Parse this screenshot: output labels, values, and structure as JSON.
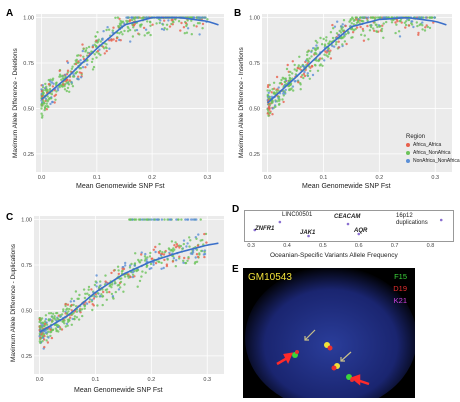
{
  "panels": {
    "A": {
      "letter": "A",
      "xlabel": "Mean Genomewide SNP Fst",
      "ylabel": "Maximum Allele Difference - Deletions",
      "xticks": [
        "0.0",
        "0.1",
        "0.2",
        "0.3"
      ],
      "yticks": [
        "1.00",
        "0.75",
        "0.50",
        "0.25"
      ]
    },
    "B": {
      "letter": "B",
      "xlabel": "Mean Genomewide SNP Fst",
      "ylabel": "Maximum Allele Difference - Insertions",
      "xticks": [
        "0.0",
        "0.1",
        "0.2",
        "0.3"
      ],
      "yticks": [
        "1.00",
        "0.75",
        "0.50",
        "0.25"
      ]
    },
    "C": {
      "letter": "C",
      "xlabel": "Mean Genomewide SNP Fst",
      "ylabel": "Maximum Allele Difference - Duplications",
      "xticks": [
        "0.0",
        "0.1",
        "0.2",
        "0.3"
      ],
      "yticks": [
        "1.00",
        "0.75",
        "0.50",
        "0.25"
      ]
    },
    "D": {
      "letter": "D",
      "xlabel": "Oceanian-Specific Variants Allele Frequency",
      "xticks": [
        "0.3",
        "0.4",
        "0.5",
        "0.6",
        "0.7",
        "0.8"
      ],
      "genes": [
        "LINC00501",
        "CEACAM",
        "16p12",
        "duplications",
        "ZNFR1",
        "JAK1",
        "AQR"
      ]
    },
    "E": {
      "letter": "E",
      "sample": "GM10543",
      "probes": [
        "F15",
        "D19",
        "K21"
      ]
    }
  },
  "legend": {
    "title": "Region",
    "items": [
      "Africa_Africa",
      "Africa_NonAfrica",
      "NonAfrica_NonAfrica"
    ]
  },
  "colors": {
    "Africa_Africa": "#e8604c",
    "Africa_NonAfrica": "#6cc35a",
    "NonAfrica_NonAfrica": "#5b8fd6",
    "fit": "#3a6fc9",
    "F15": "#3bd63b",
    "D19": "#e83030",
    "K21": "#d040e0",
    "sample": "#f2e23a"
  },
  "chart_data": [
    {
      "type": "scatter",
      "panel": "A",
      "xlabel": "Mean Genomewide SNP Fst",
      "ylabel": "Maximum Allele Difference - Deletions",
      "xlim": [
        -0.01,
        0.33
      ],
      "ylim": [
        0.15,
        1.02
      ],
      "series": [
        {
          "name": "Africa_Africa"
        },
        {
          "name": "Africa_NonAfrica"
        },
        {
          "name": "NonAfrica_NonAfrica"
        }
      ],
      "fit": {
        "x": [
          0,
          0.05,
          0.1,
          0.15,
          0.2,
          0.25,
          0.3,
          0.32
        ],
        "y": [
          0.55,
          0.68,
          0.83,
          0.96,
          1.0,
          1.0,
          0.98,
          0.96
        ]
      }
    },
    {
      "type": "scatter",
      "panel": "B",
      "xlabel": "Mean Genomewide SNP Fst",
      "ylabel": "Maximum Allele Difference - Insertions",
      "xlim": [
        -0.01,
        0.33
      ],
      "ylim": [
        0.15,
        1.02
      ],
      "fit": {
        "x": [
          0,
          0.05,
          0.1,
          0.15,
          0.2,
          0.25,
          0.3,
          0.32
        ],
        "y": [
          0.53,
          0.67,
          0.82,
          0.95,
          0.99,
          1.0,
          0.98,
          0.96
        ]
      }
    },
    {
      "type": "scatter",
      "panel": "C",
      "xlabel": "Mean Genomewide SNP Fst",
      "ylabel": "Maximum Allele Difference - Duplications",
      "xlim": [
        -0.01,
        0.33
      ],
      "ylim": [
        0.15,
        1.02
      ],
      "fit": {
        "x": [
          0,
          0.05,
          0.1,
          0.15,
          0.2,
          0.25,
          0.3,
          0.32
        ],
        "y": [
          0.38,
          0.47,
          0.6,
          0.7,
          0.77,
          0.82,
          0.86,
          0.87
        ]
      }
    },
    {
      "type": "scatter",
      "panel": "D",
      "xlabel": "Oceanian-Specific Variants Allele Frequency",
      "xlim": [
        0.28,
        0.86
      ],
      "points": [
        {
          "label": "ZNFR1",
          "x": 0.31
        },
        {
          "label": "LINC00501",
          "x": 0.38
        },
        {
          "label": "JAK1",
          "x": 0.46
        },
        {
          "label": "CEACAM",
          "x": 0.57
        },
        {
          "label": "AQR",
          "x": 0.6
        },
        {
          "label": "16p12 duplications",
          "x": 0.83
        }
      ]
    }
  ]
}
